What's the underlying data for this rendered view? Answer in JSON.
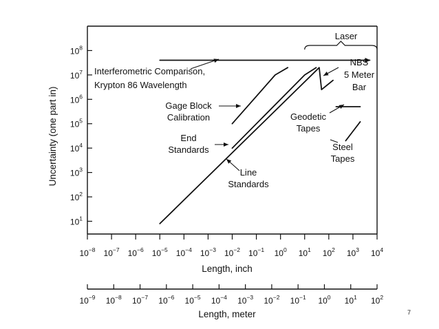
{
  "page_number": "7",
  "chart_data": {
    "type": "line",
    "title": "",
    "xlabel": "Length, inch",
    "x2label": "Length, meter",
    "ylabel": "Uncertainty (one part in)",
    "x_scale": "log",
    "y_scale": "log",
    "xlim": [
      1e-08,
      10000
    ],
    "ylim": [
      3,
      1000000000.0
    ],
    "x2lim": [
      1e-09,
      100
    ],
    "grid": false,
    "legend": "none",
    "x_ticks": [
      1e-08,
      1e-07,
      1e-06,
      1e-05,
      0.0001,
      0.001,
      0.01,
      0.1,
      1,
      10,
      100,
      1000,
      10000
    ],
    "x_tick_labels": [
      {
        "base": "10",
        "exp": "−8"
      },
      {
        "base": "10",
        "exp": "−7"
      },
      {
        "base": "10",
        "exp": "−6"
      },
      {
        "base": "10",
        "exp": "−5"
      },
      {
        "base": "10",
        "exp": "−4"
      },
      {
        "base": "10",
        "exp": "−3"
      },
      {
        "base": "10",
        "exp": "−2"
      },
      {
        "base": "10",
        "exp": "−1"
      },
      {
        "base": "10",
        "exp": "0"
      },
      {
        "base": "10",
        "exp": "1"
      },
      {
        "base": "10",
        "exp": "2"
      },
      {
        "base": "10",
        "exp": "3"
      },
      {
        "base": "10",
        "exp": "4"
      }
    ],
    "x2_ticks": [
      1e-09,
      1e-08,
      1e-07,
      1e-06,
      1e-05,
      0.0001,
      0.001,
      0.01,
      0.1,
      1,
      10,
      100
    ],
    "x2_tick_labels": [
      {
        "base": "10",
        "exp": "−9"
      },
      {
        "base": "10",
        "exp": "−8"
      },
      {
        "base": "10",
        "exp": "−7"
      },
      {
        "base": "10",
        "exp": "−6"
      },
      {
        "base": "10",
        "exp": "−5"
      },
      {
        "base": "10",
        "exp": "−4"
      },
      {
        "base": "10",
        "exp": "−3"
      },
      {
        "base": "10",
        "exp": "−2"
      },
      {
        "base": "10",
        "exp": "−1"
      },
      {
        "base": "10",
        "exp": "0"
      },
      {
        "base": "10",
        "exp": "1"
      },
      {
        "base": "10",
        "exp": "2"
      }
    ],
    "y_ticks": [
      10,
      100,
      1000,
      10000,
      100000,
      1000000,
      10000000,
      100000000
    ],
    "y_tick_labels": [
      {
        "base": "10",
        "exp": "1"
      },
      {
        "base": "10",
        "exp": "2"
      },
      {
        "base": "10",
        "exp": "3"
      },
      {
        "base": "10",
        "exp": "4"
      },
      {
        "base": "10",
        "exp": "5"
      },
      {
        "base": "10",
        "exp": "6"
      },
      {
        "base": "10",
        "exp": "7"
      },
      {
        "base": "10",
        "exp": "8"
      }
    ],
    "series": [
      {
        "name": "Interferometric Comparison, Krypton 86 Wavelength",
        "x": [
          1e-05,
          5000
        ],
        "y": [
          40000000,
          40000000
        ]
      },
      {
        "name": "Gage Block Calibration",
        "x": [
          0.01,
          0.6,
          2.0
        ],
        "y": [
          100000,
          10000000,
          20000000
        ]
      },
      {
        "name": "End Standards",
        "x": [
          0.01,
          10,
          30
        ],
        "y": [
          10000,
          10000000,
          20000000
        ]
      },
      {
        "name": "Line Standards",
        "x": [
          1e-05,
          40,
          50,
          90,
          150
        ],
        "y": [
          8,
          20000000,
          2500000,
          4000000,
          6000000
        ]
      },
      {
        "name": "Geodetic Tapes",
        "x": [
          200,
          2000
        ],
        "y": [
          500000,
          500000
        ]
      },
      {
        "name": "Steel Tapes",
        "x": [
          500,
          2000
        ],
        "y": [
          20000,
          120000
        ]
      }
    ],
    "annotations": [
      {
        "id": "laser",
        "lines": [
          "Laser"
        ],
        "x_range": [
          10,
          10000
        ]
      },
      {
        "id": "interf",
        "lines": [
          "Interferometric Comparison,",
          "Krypton 86 Wavelength"
        ]
      },
      {
        "id": "gage",
        "lines": [
          "Gage Block",
          "Calibration"
        ]
      },
      {
        "id": "end",
        "lines": [
          "End",
          "Standards"
        ]
      },
      {
        "id": "line",
        "lines": [
          "Line",
          "Standards"
        ]
      },
      {
        "id": "nbs",
        "lines": [
          "NBS",
          "5 Meter",
          "Bar"
        ]
      },
      {
        "id": "geodetic",
        "lines": [
          "Geodetic",
          "Tapes"
        ]
      },
      {
        "id": "steel",
        "lines": [
          "Steel",
          "Tapes"
        ]
      }
    ]
  }
}
